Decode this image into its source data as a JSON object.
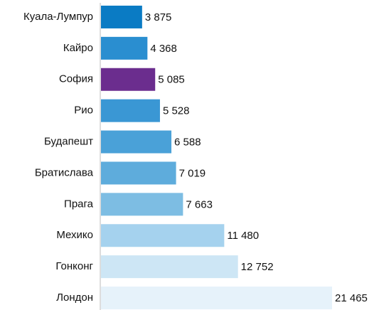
{
  "chart_data": {
    "type": "hbar",
    "categories": [
      "Куала-Лумпур",
      "Кайро",
      "София",
      "Рио",
      "Будапешт",
      "Братислава",
      "Прага",
      "Мехико",
      "Гонконг",
      "Лондон"
    ],
    "values": [
      3875,
      4368,
      5085,
      5528,
      6588,
      7019,
      7663,
      11480,
      12752,
      21465
    ],
    "value_labels": [
      "3 875",
      "4 368",
      "5 085",
      "5 528",
      "6 588",
      "7 019",
      "7 663",
      "11 480",
      "12 752",
      "21 465"
    ],
    "colors": [
      "#0a7bc4",
      "#2a8ed0",
      "#6b2d8e",
      "#3a97d4",
      "#4aa1d8",
      "#5eacdc",
      "#7dbde3",
      "#a5d2ee",
      "#cde6f5",
      "#e6f2fa"
    ]
  }
}
